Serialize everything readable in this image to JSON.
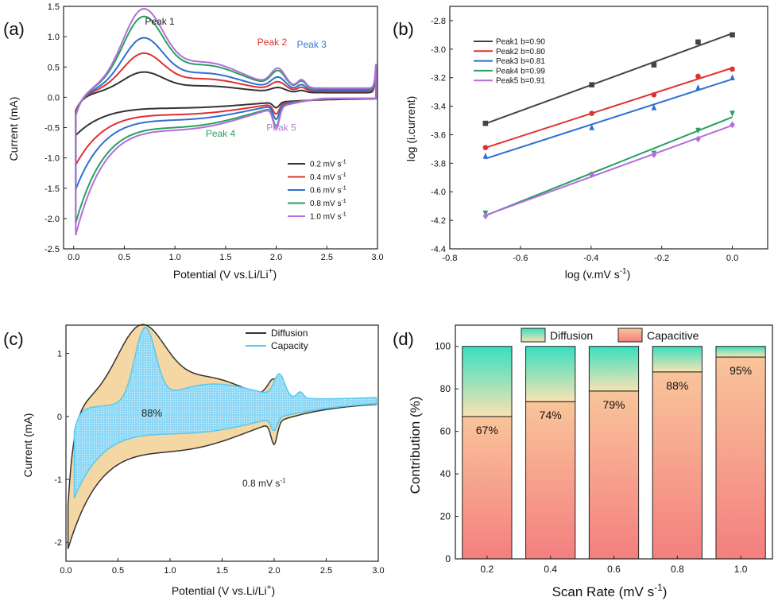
{
  "panels": {
    "a": {
      "letter": "(a)",
      "xlabel": "Potential (V vs.Li/Li",
      "xlabel_sup": "+",
      "xlabel_end": ")",
      "ylabel": "Current (mA)",
      "peak_labels": [
        {
          "text": "Peak 1",
          "x": 0.85,
          "y": 1.2,
          "color": "#222222"
        },
        {
          "text": "Peak 2",
          "x": 1.96,
          "y": 0.86,
          "color": "#e03030"
        },
        {
          "text": "Peak 3",
          "x": 2.35,
          "y": 0.82,
          "color": "#2f7ad1"
        },
        {
          "text": "Peak 4",
          "x": 1.45,
          "y": -0.65,
          "color": "#27a060"
        },
        {
          "text": "Peak 5",
          "x": 2.05,
          "y": -0.55,
          "color": "#b77dd6"
        }
      ],
      "legend": [
        {
          "label": "0.2 mV s",
          "sup": "-1",
          "color": "#333333"
        },
        {
          "label": "0.4 mV s",
          "sup": "-1",
          "color": "#e03030"
        },
        {
          "label": "0.6 mV s",
          "sup": "-1",
          "color": "#2f6fd1"
        },
        {
          "label": "0.8 mV s",
          "sup": "-1",
          "color": "#27a060"
        },
        {
          "label": "1.0 mV s",
          "sup": "-1",
          "color": "#b46ddb"
        }
      ]
    },
    "b": {
      "letter": "(b)",
      "xlabel": "log (v.mV s",
      "xlabel_sup": "-1",
      "xlabel_end": ")",
      "ylabel": "log (i.current)",
      "legend": [
        {
          "label": "Peak1 b=0.90",
          "color": "#444444"
        },
        {
          "label": "Peak2 b=0.80",
          "color": "#e03030"
        },
        {
          "label": "Peak3 b=0.81",
          "color": "#2f6fd1"
        },
        {
          "label": "Peak4 b=0.99",
          "color": "#27a060"
        },
        {
          "label": "Peak5 b=0.91",
          "color": "#b46ddb"
        }
      ]
    },
    "c": {
      "letter": "(c)",
      "xlabel": "Potential (V vs.Li/Li",
      "xlabel_sup": "+",
      "xlabel_end": ")",
      "ylabel": "Current (mA)",
      "percent_label": "88%",
      "rate_label": "0.8 mV s",
      "rate_sup": "-1",
      "legend": [
        {
          "label": "Diffusion",
          "color": "#333333"
        },
        {
          "label": "Capacity",
          "color": "#5bc8ec"
        }
      ]
    },
    "d": {
      "letter": "(d)",
      "xlabel": "Scan Rate (mV s",
      "xlabel_sup": "-1",
      "xlabel_end": ")",
      "ylabel": "Contribution (%)",
      "legend": [
        {
          "label": "Diffusion",
          "color_top": "#3fe0c0",
          "color_bottom": "#f8e2b0"
        },
        {
          "label": "Capacitive",
          "color_top": "#f8b890",
          "color_bottom": "#f48080"
        }
      ]
    }
  },
  "chart_data": [
    {
      "panel": "a",
      "type": "line",
      "xlim": [
        -0.1,
        3.0
      ],
      "ylim": [
        -2.5,
        1.5
      ],
      "xticks": [
        0.0,
        0.5,
        1.0,
        1.5,
        2.0,
        2.5,
        3.0
      ],
      "yticks": [
        -2.5,
        -2.0,
        -1.5,
        -1.0,
        -0.5,
        0.0,
        0.5,
        1.0,
        1.5
      ],
      "series": [
        {
          "name": "0.2 mV s-1",
          "color": "#333333",
          "scale": 0.26,
          "amp": 0.5
        },
        {
          "name": "0.4 mV s-1",
          "color": "#e03030",
          "scale": 0.48,
          "amp": 0.62
        },
        {
          "name": "0.6 mV s-1",
          "color": "#2f6fd1",
          "scale": 0.66,
          "amp": 0.75
        },
        {
          "name": "0.8 mV s-1",
          "color": "#27a060",
          "scale": 0.91,
          "amp": 0.88
        },
        {
          "name": "1.0 mV s-1",
          "color": "#b46ddb",
          "scale": 1.0,
          "amp": 1.0
        }
      ]
    },
    {
      "panel": "b",
      "type": "scatter",
      "xlim": [
        -0.8,
        0.1
      ],
      "ylim": [
        -4.4,
        -2.7
      ],
      "xticks": [
        -0.8,
        -0.6,
        -0.4,
        -0.2,
        0.0
      ],
      "yticks": [
        -4.4,
        -4.2,
        -4.0,
        -3.8,
        -3.6,
        -3.4,
        -3.2,
        -3.0,
        -2.8
      ],
      "x": [
        -0.699,
        -0.398,
        -0.222,
        -0.097,
        0.0
      ],
      "series": [
        {
          "name": "Peak1 b=0.90",
          "marker": "square",
          "color": "#444444",
          "values": [
            -3.52,
            -3.25,
            -3.11,
            -2.95,
            -2.9
          ]
        },
        {
          "name": "Peak2 b=0.80",
          "marker": "circle",
          "color": "#e03030",
          "values": [
            -3.69,
            -3.45,
            -3.32,
            -3.19,
            -3.14
          ]
        },
        {
          "name": "Peak3 b=0.81",
          "marker": "triangle-up",
          "color": "#2f6fd1",
          "values": [
            -3.75,
            -3.55,
            -3.41,
            -3.27,
            -3.2
          ]
        },
        {
          "name": "Peak4 b=0.99",
          "marker": "triangle-down",
          "color": "#27a060",
          "values": [
            -4.15,
            -3.88,
            -3.73,
            -3.57,
            -3.45
          ]
        },
        {
          "name": "Peak5 b=0.91",
          "marker": "diamond",
          "color": "#b46ddb",
          "values": [
            -4.17,
            -3.88,
            -3.74,
            -3.63,
            -3.53
          ]
        }
      ]
    },
    {
      "panel": "c",
      "type": "area",
      "xlim": [
        0.0,
        3.0
      ],
      "ylim": [
        -2.3,
        1.45
      ],
      "xticks": [
        0.0,
        0.5,
        1.0,
        1.5,
        2.0,
        2.5,
        3.0
      ],
      "yticks": [
        -2,
        -1,
        0,
        1
      ],
      "series": [
        {
          "name": "Diffusion",
          "color": "#333333"
        },
        {
          "name": "Capacity",
          "color": "#5bc8ec"
        }
      ]
    },
    {
      "panel": "d",
      "type": "bar",
      "categories": [
        "0.2",
        "0.4",
        "0.6",
        "0.8",
        "1.0"
      ],
      "ylim": [
        0,
        110
      ],
      "yticks": [
        0,
        20,
        40,
        60,
        80,
        100
      ],
      "series": [
        {
          "name": "Capacitive",
          "values": [
            67,
            74,
            79,
            88,
            95
          ]
        },
        {
          "name": "Diffusion",
          "values": [
            33,
            26,
            21,
            12,
            5
          ]
        }
      ],
      "data_labels": [
        "67%",
        "74%",
        "79%",
        "88%",
        "95%"
      ]
    }
  ]
}
